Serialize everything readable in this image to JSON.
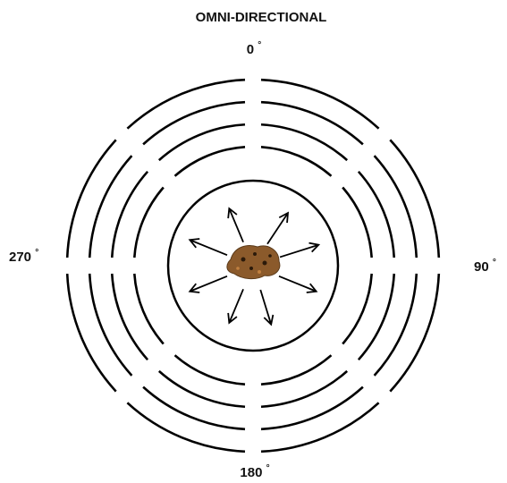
{
  "title": "OMNI-DIRECTIONAL",
  "directions": [
    {
      "number": "0",
      "degree": "°"
    },
    {
      "number": "90",
      "degree": "°"
    },
    {
      "number": "180",
      "degree": "°"
    },
    {
      "number": "270",
      "degree": "°"
    }
  ]
}
